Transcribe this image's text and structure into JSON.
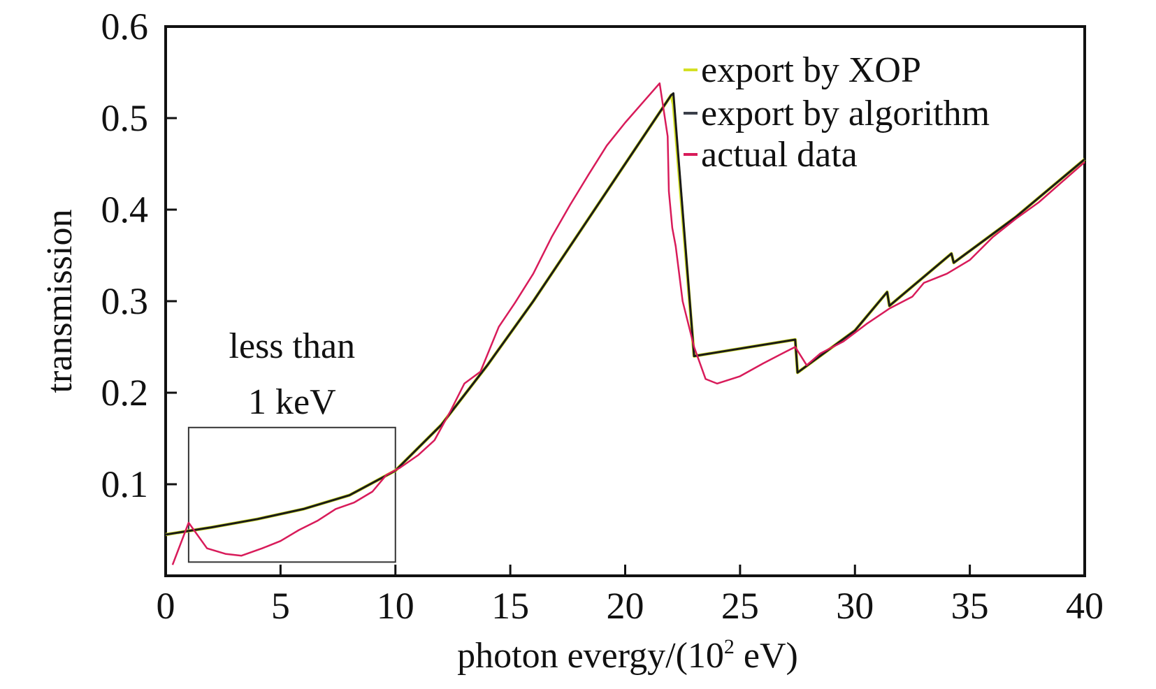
{
  "chart_data": {
    "type": "line",
    "title": "",
    "xlabel": "photon evergy/(10",
    "xlabel_sup": "2",
    "xlabel_tail": " eV)",
    "ylabel": "transmission",
    "xlim": [
      0,
      40
    ],
    "ylim": [
      0,
      0.6
    ],
    "x_ticks": [
      0,
      5,
      10,
      15,
      20,
      25,
      30,
      35,
      40
    ],
    "x_tick_labels": [
      "0",
      "5",
      "10",
      "15",
      "20",
      "25",
      "30",
      "35",
      "40"
    ],
    "y_ticks": [
      0.1,
      0.2,
      0.3,
      0.4,
      0.5,
      0.6
    ],
    "y_tick_labels": [
      "0.1",
      "0.2",
      "0.3",
      "0.4",
      "0.5",
      "0.6"
    ],
    "grid": false,
    "legend_position": "top-right",
    "series": [
      {
        "name": "export by XOP",
        "color": "#d4e024",
        "x": [
          0.0,
          2.0,
          4.0,
          6.0,
          8.0,
          10.0,
          12.0,
          14.0,
          16.0,
          18.0,
          20.0,
          22.0,
          22.1,
          23.0,
          27.4,
          27.5,
          30.0,
          31.4,
          31.5,
          34.2,
          34.3,
          37.0,
          40.0
        ],
        "y": [
          0.045,
          0.053,
          0.062,
          0.073,
          0.088,
          0.115,
          0.165,
          0.23,
          0.3,
          0.375,
          0.45,
          0.525,
          0.515,
          0.24,
          0.258,
          0.222,
          0.268,
          0.31,
          0.295,
          0.352,
          0.342,
          0.392,
          0.455
        ]
      },
      {
        "name": "export by algorithm",
        "color": "#1a1a1a",
        "x": [
          0.0,
          2.0,
          4.0,
          6.0,
          8.0,
          10.0,
          12.0,
          14.0,
          16.0,
          18.0,
          20.0,
          22.0,
          22.1,
          23.0,
          27.4,
          27.5,
          30.0,
          31.4,
          31.5,
          34.2,
          34.3,
          37.0,
          40.0
        ],
        "y": [
          0.045,
          0.053,
          0.062,
          0.073,
          0.088,
          0.115,
          0.165,
          0.23,
          0.3,
          0.375,
          0.45,
          0.525,
          0.527,
          0.24,
          0.258,
          0.222,
          0.268,
          0.31,
          0.295,
          0.352,
          0.342,
          0.392,
          0.455
        ]
      },
      {
        "name": "actual data",
        "color": "#d81b5a",
        "x": [
          0.3,
          1.0,
          1.8,
          2.6,
          3.3,
          4.2,
          5.0,
          5.8,
          6.6,
          7.4,
          8.2,
          9.0,
          9.6,
          10.2,
          11.0,
          11.7,
          12.4,
          13.0,
          13.7,
          14.5,
          15.2,
          16.0,
          16.8,
          17.6,
          18.4,
          19.2,
          20.0,
          20.8,
          21.5,
          21.85,
          21.9,
          22.05,
          22.2,
          22.5,
          23.0,
          23.5,
          24.0,
          25.0,
          26.0,
          27.0,
          27.4,
          27.9,
          28.5,
          29.5,
          30.5,
          31.5,
          32.5,
          33.0,
          34.0,
          35.0,
          36.0,
          37.0,
          38.0,
          39.0,
          40.0
        ],
        "y": [
          0.012,
          0.058,
          0.03,
          0.024,
          0.022,
          0.03,
          0.038,
          0.05,
          0.06,
          0.073,
          0.08,
          0.092,
          0.11,
          0.118,
          0.132,
          0.148,
          0.18,
          0.21,
          0.223,
          0.272,
          0.298,
          0.33,
          0.37,
          0.405,
          0.438,
          0.47,
          0.495,
          0.518,
          0.538,
          0.48,
          0.42,
          0.38,
          0.36,
          0.3,
          0.25,
          0.215,
          0.21,
          0.218,
          0.232,
          0.245,
          0.25,
          0.23,
          0.243,
          0.256,
          0.275,
          0.292,
          0.305,
          0.32,
          0.33,
          0.345,
          0.37,
          0.39,
          0.408,
          0.43,
          0.452
        ]
      }
    ],
    "annotations": [
      {
        "text_lines": [
          "less than",
          "1 keV"
        ],
        "box_x_range": [
          1.0,
          10.0
        ],
        "box_y_range": [
          0.015,
          0.162
        ]
      }
    ]
  }
}
